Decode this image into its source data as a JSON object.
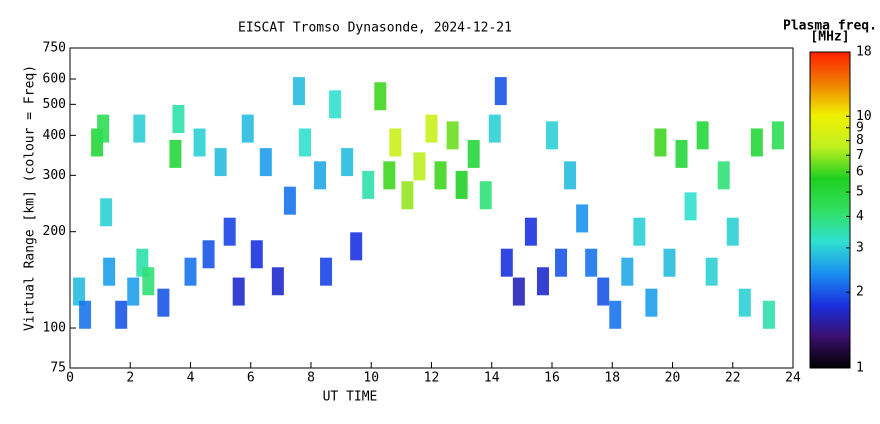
{
  "chart_data": {
    "type": "heatmap-scatter",
    "title": "EISCAT Tromso Dynasonde, 2024-12-21",
    "x_label": "UT TIME",
    "y_label": "Virtual Range [km] (colour = Freq)",
    "colorbar_label": "Plasma freq.",
    "colorbar_unit": "[MHz]",
    "xlim": [
      0,
      24
    ],
    "xticks": [
      0,
      2,
      4,
      6,
      8,
      10,
      12,
      14,
      16,
      18,
      20,
      22,
      24
    ],
    "ylim": [
      75,
      750
    ],
    "yticks": [
      75,
      100,
      200,
      300,
      400,
      500,
      600,
      750
    ],
    "ylog": true,
    "clim": [
      1,
      18
    ],
    "cticks": [
      1,
      2,
      3,
      4,
      5,
      6,
      7,
      8,
      9,
      10,
      18
    ],
    "clog": true,
    "colormap": [
      "#000000",
      "#3a1070",
      "#1a30e0",
      "#1a90f0",
      "#30e0d0",
      "#30e060",
      "#20d020",
      "#c0f020",
      "#f0f000",
      "#f08000",
      "#ff2000"
    ],
    "x": [
      0.3,
      0.5,
      0.9,
      1.1,
      1.3,
      1.2,
      1.7,
      2.1,
      2.4,
      2.3,
      2.6,
      3.1,
      3.5,
      3.6,
      4.0,
      4.3,
      4.6,
      5.0,
      5.3,
      5.6,
      5.9,
      6.2,
      6.5,
      6.9,
      7.3,
      7.6,
      7.8,
      8.3,
      8.5,
      8.8,
      9.2,
      9.5,
      9.9,
      10.3,
      10.6,
      10.8,
      11.2,
      11.6,
      12.0,
      12.3,
      12.7,
      13.0,
      13.4,
      13.8,
      14.1,
      14.3,
      14.5,
      14.9,
      15.3,
      15.7,
      16.0,
      16.3,
      16.6,
      17.0,
      17.3,
      17.7,
      18.1,
      18.5,
      18.9,
      19.3,
      19.6,
      19.9,
      20.3,
      20.6,
      21.0,
      21.3,
      21.7,
      22.0,
      22.4,
      22.8,
      23.2,
      23.5
    ],
    "y": [
      130,
      110,
      380,
      420,
      150,
      230,
      110,
      130,
      160,
      420,
      140,
      120,
      350,
      450,
      150,
      380,
      170,
      330,
      200,
      130,
      420,
      170,
      330,
      140,
      250,
      550,
      380,
      300,
      150,
      500,
      330,
      180,
      280,
      530,
      300,
      380,
      260,
      320,
      420,
      300,
      400,
      280,
      350,
      260,
      420,
      550,
      160,
      130,
      200,
      140,
      400,
      160,
      300,
      220,
      160,
      130,
      110,
      150,
      200,
      120,
      380,
      160,
      350,
      240,
      400,
      150,
      300,
      200,
      120,
      380,
      110,
      400
    ],
    "freq": [
      2.8,
      2.2,
      5,
      4.5,
      2.5,
      3,
      2,
      2.5,
      3.5,
      3,
      4,
      2,
      5,
      3.5,
      2.2,
      3,
      2,
      2.8,
      1.9,
      1.7,
      2.8,
      1.8,
      2.5,
      1.7,
      2.2,
      2.8,
      3.2,
      2.6,
      1.9,
      3.2,
      2.8,
      1.8,
      3.5,
      6,
      6,
      8,
      7,
      7.5,
      8,
      6,
      6.5,
      5.5,
      5,
      4,
      3,
      2,
      1.8,
      1.6,
      1.8,
      1.7,
      3,
      2,
      2.8,
      2.4,
      2.2,
      2,
      2.2,
      2.6,
      3,
      2.5,
      6,
      2.8,
      5,
      3.2,
      5,
      3,
      4,
      3,
      3,
      5,
      3.5,
      4.5
    ]
  }
}
